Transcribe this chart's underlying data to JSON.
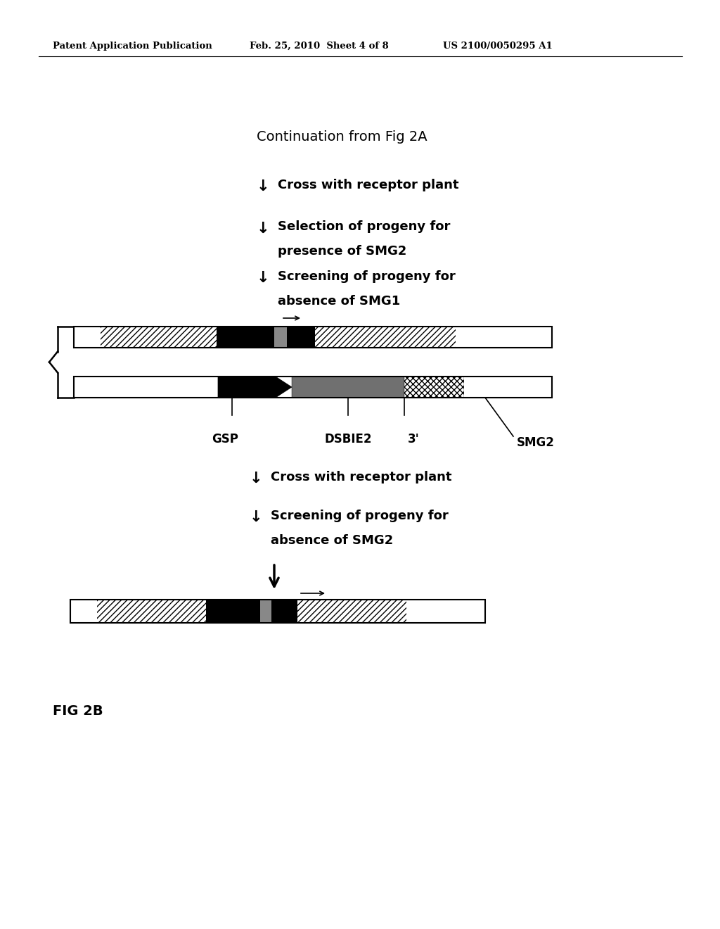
{
  "header_left": "Patent Application Publication",
  "header_mid": "Feb. 25, 2010  Sheet 4 of 8",
  "header_right": "US 2100/0050295 A1",
  "title": "Continuation from Fig 2A",
  "step1": "↓ Cross with receptor plant",
  "step2_line1": "↓  Selection of progeny for",
  "step2_line2": "presence of SMG2",
  "step3_line1": "↓  Screening of progeny for",
  "step3_line2": "absence of SMG1",
  "step4": "↓ Cross with receptor plant",
  "step5_line1": "↓  Screening of progeny for",
  "step5_line2": "absence of SMG2",
  "fig_label": "FIG 2B",
  "background": "#ffffff"
}
